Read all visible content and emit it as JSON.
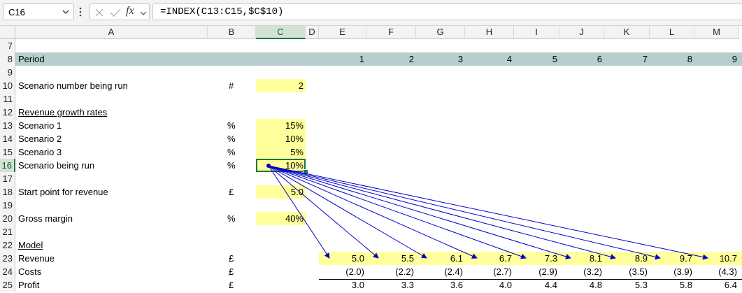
{
  "formula_bar": {
    "name_box": "C16",
    "formula": "=INDEX(C13:C15,$C$10)",
    "fx_label": "fx"
  },
  "column_headers": [
    "A",
    "B",
    "C",
    "D",
    "E",
    "F",
    "G",
    "H",
    "I",
    "J",
    "K",
    "L",
    "M"
  ],
  "row_numbers": [
    "7",
    "8",
    "9",
    "10",
    "11",
    "12",
    "13",
    "14",
    "15",
    "16",
    "17",
    "18",
    "19",
    "20",
    "21",
    "22",
    "23",
    "24",
    "25"
  ],
  "selected_cell": "C16",
  "colors": {
    "input_fill": "#ffff9b",
    "period_fill": "#b6cfce",
    "selection": "#217346",
    "trace_arrows": "#0000cc"
  },
  "sheet": {
    "period_label": "Period",
    "periods": [
      "1",
      "2",
      "3",
      "4",
      "5",
      "6",
      "7",
      "8",
      "9"
    ],
    "scenario_label": "Scenario number being run",
    "scenario_unit": "#",
    "scenario_value": "2",
    "growth_heading": "Revenue growth rates",
    "scenarios": [
      {
        "label": "Scenario 1",
        "unit": "%",
        "value": "15%"
      },
      {
        "label": "Scenario 2",
        "unit": "%",
        "value": "10%"
      },
      {
        "label": "Scenario 3",
        "unit": "%",
        "value": "5%"
      },
      {
        "label": "Scenario being run",
        "unit": "%",
        "value": "10%"
      }
    ],
    "start_label": "Start point for revenue",
    "start_unit": "£",
    "start_value": "5.0",
    "margin_label": "Gross margin",
    "margin_unit": "%",
    "margin_value": "40%",
    "model_heading": "Model",
    "revenue_label": "Revenue",
    "revenue_unit": "£",
    "revenue": [
      "5.0",
      "5.5",
      "6.1",
      "6.7",
      "7.3",
      "8.1",
      "8.9",
      "9.7",
      "10.7"
    ],
    "costs_label": "Costs",
    "costs_unit": "£",
    "costs": [
      "(2.0)",
      "(2.2)",
      "(2.4)",
      "(2.7)",
      "(2.9)",
      "(3.2)",
      "(3.5)",
      "(3.9)",
      "(4.3)"
    ],
    "profit_label": "Profit",
    "profit_unit": "£",
    "profit": [
      "3.0",
      "3.3",
      "3.6",
      "4.0",
      "4.4",
      "4.8",
      "5.3",
      "5.8",
      "6.4"
    ]
  }
}
